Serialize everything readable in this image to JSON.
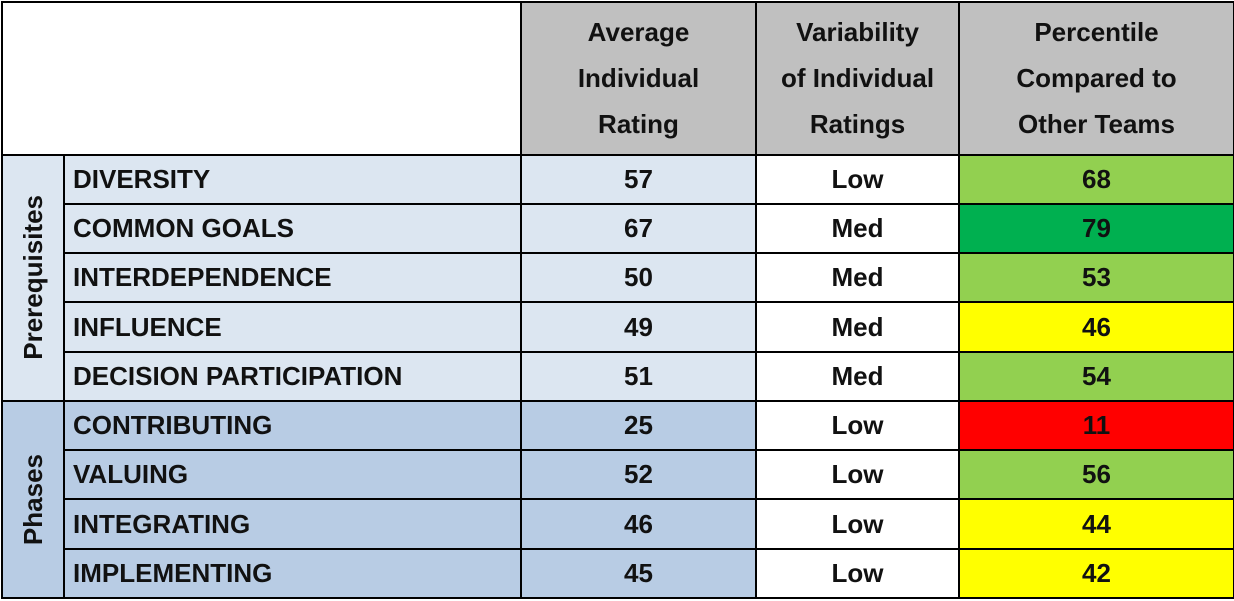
{
  "header": {
    "columns": [
      [
        "Average",
        "Individual",
        "Rating"
      ],
      [
        "Variability",
        "of Individual",
        "Ratings"
      ],
      [
        "Percentile",
        "Compared to",
        "Other Teams"
      ]
    ]
  },
  "groups": [
    {
      "label": "Prerequisites",
      "background": "#dce6f1",
      "rows": [
        {
          "name": "DIVERSITY",
          "average": 57,
          "variability": "Low",
          "percentile": 68,
          "color": "#92d050"
        },
        {
          "name": "COMMON GOALS",
          "average": 67,
          "variability": "Med",
          "percentile": 79,
          "color": "#00b050"
        },
        {
          "name": "INTERDEPENDENCE",
          "average": 50,
          "variability": "Med",
          "percentile": 53,
          "color": "#92d050"
        },
        {
          "name": "INFLUENCE",
          "average": 49,
          "variability": "Med",
          "percentile": 46,
          "color": "#ffff00"
        },
        {
          "name": "DECISION PARTICIPATION",
          "average": 51,
          "variability": "Med",
          "percentile": 54,
          "color": "#92d050"
        }
      ]
    },
    {
      "label": "Phases",
      "background": "#b8cce4",
      "rows": [
        {
          "name": "CONTRIBUTING",
          "average": 25,
          "variability": "Low",
          "percentile": 11,
          "color": "#ff0000"
        },
        {
          "name": "VALUING",
          "average": 52,
          "variability": "Low",
          "percentile": 56,
          "color": "#92d050"
        },
        {
          "name": "INTEGRATING",
          "average": 46,
          "variability": "Low",
          "percentile": 44,
          "color": "#ffff00"
        },
        {
          "name": "IMPLEMENTING",
          "average": 45,
          "variability": "Low",
          "percentile": 42,
          "color": "#ffff00"
        }
      ]
    }
  ]
}
